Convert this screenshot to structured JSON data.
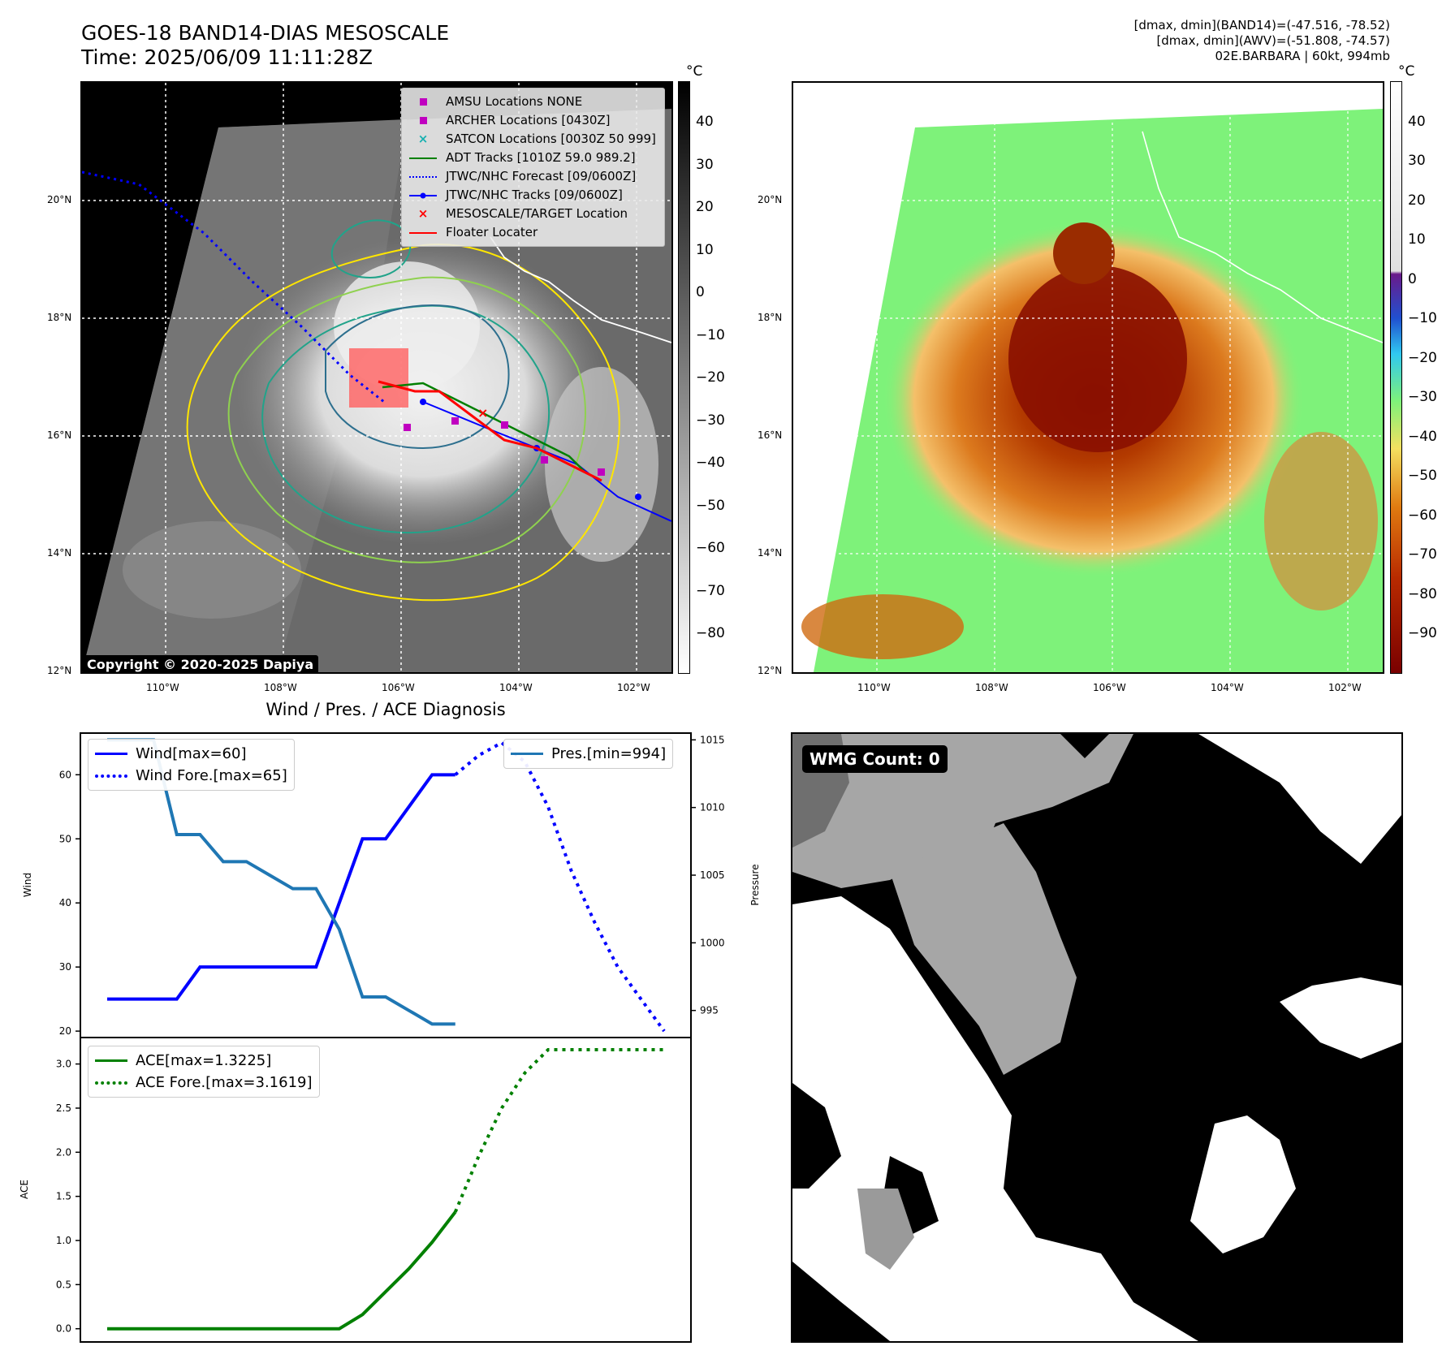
{
  "header": {
    "title_line1": "GOES-18 BAND14-DIAS MESOSCALE",
    "title_line2": "Time: 2025/06/09 11:11:28Z",
    "right_line1": "[dmax, dmin](BAND14)=(-47.516, -78.52)",
    "right_line2": "[dmax, dmin](AWV)=(-51.808, -74.57)",
    "right_line3": "02E.BARBARA | 60kt, 994mb"
  },
  "map_axes": {
    "lat_labels": [
      "20°N",
      "18°N",
      "16°N",
      "14°N",
      "12°N"
    ],
    "lon_labels": [
      "110°W",
      "108°W",
      "106°W",
      "104°W",
      "102°W"
    ]
  },
  "left_map": {
    "legend": [
      {
        "label": "AMSU Locations NONE",
        "symbol": "square",
        "color": "#c000c0"
      },
      {
        "label": "ARCHER Locations [0430Z]",
        "symbol": "square",
        "color": "#c000c0"
      },
      {
        "label": "SATCON Locations [0030Z 50 999]",
        "symbol": "x",
        "color": "#17b0b0"
      },
      {
        "label": "ADT Tracks [1010Z 59.0 989.2]",
        "symbol": "line",
        "color": "#008000"
      },
      {
        "label": "JTWC/NHC Forecast [09/0600Z]",
        "symbol": "dotted",
        "color": "#0000ff"
      },
      {
        "label": "JTWC/NHC Tracks [09/0600Z]",
        "symbol": "line-dot",
        "color": "#0000ff"
      },
      {
        "label": "MESOSCALE/TARGET Location",
        "symbol": "x",
        "color": "#ff0000"
      },
      {
        "label": "Floater Locater",
        "symbol": "line",
        "color": "#ff0000"
      }
    ],
    "colorbar": {
      "unit": "°C",
      "ticks": [
        "40",
        "30",
        "20",
        "10",
        "0",
        "−10",
        "−20",
        "−30",
        "−40",
        "−50",
        "−60",
        "−70",
        "−80"
      ]
    },
    "copyright": "Copyright © 2020-2025 Dapiya"
  },
  "right_map": {
    "colorbar": {
      "unit": "°C",
      "ticks": [
        "40",
        "30",
        "20",
        "10",
        "0",
        "−10",
        "−20",
        "−30",
        "−40",
        "−50",
        "−60",
        "−70",
        "−80",
        "−90"
      ]
    }
  },
  "diagnosis": {
    "title": "Wind / Pres. / ACE Diagnosis",
    "wind_ylabel": "Wind",
    "pres_ylabel": "Pressure",
    "ace_ylabel": "ACE",
    "legend_wind": "Wind[max=60]",
    "legend_wind_fore": "Wind Fore.[max=65]",
    "legend_pres": "Pres.[min=994]",
    "legend_ace": "ACE[max=1.3225]",
    "legend_ace_fore": "ACE Fore.[max=3.1619]"
  },
  "wmg": {
    "label": "WMG Count: 0"
  },
  "chart_data": [
    {
      "type": "line",
      "title": "Wind / Pres. / ACE Diagnosis",
      "x": [
        0,
        1,
        2,
        3,
        4,
        5,
        6,
        7,
        8,
        9,
        10,
        11,
        12,
        13,
        14,
        15,
        16,
        17,
        18,
        19,
        20,
        21,
        22,
        23,
        24
      ],
      "ylabel": "Wind",
      "ylim": [
        19,
        66.5
      ],
      "yticks": [
        20,
        30,
        40,
        50,
        60
      ],
      "y2label": "Pressure",
      "y2lim": [
        993,
        1015.5
      ],
      "y2ticks": [
        995,
        1000,
        1005,
        1010,
        1015
      ],
      "series": [
        {
          "name": "Wind[max=60]",
          "axis": "left",
          "color": "#0000ff",
          "style": "solid",
          "x": [
            0,
            3,
            4,
            5,
            6,
            7,
            8,
            9,
            10,
            11,
            12,
            13,
            14,
            15
          ],
          "values": [
            25,
            25,
            30,
            30,
            30,
            30,
            30,
            30,
            40,
            50,
            50,
            55,
            60,
            60
          ]
        },
        {
          "name": "Wind Fore.[max=65]",
          "axis": "left",
          "color": "#0000ff",
          "style": "dotted",
          "x": [
            15,
            16,
            17,
            18,
            19,
            20,
            21,
            22,
            23,
            24
          ],
          "values": [
            60,
            63,
            65,
            62,
            55,
            45,
            37,
            30,
            25,
            20
          ]
        },
        {
          "name": "Pres.[min=994]",
          "axis": "right",
          "color": "#1f77b4",
          "style": "solid",
          "x": [
            0,
            2,
            3,
            4,
            5,
            6,
            7,
            8,
            9,
            10,
            11,
            12,
            13,
            14,
            15
          ],
          "values": [
            1015,
            1015,
            1008,
            1008,
            1006,
            1006,
            1005,
            1004,
            1004,
            1001,
            996,
            996,
            995,
            994,
            994
          ]
        }
      ]
    },
    {
      "type": "line",
      "ylabel": "ACE",
      "ylim": [
        -0.15,
        3.3
      ],
      "yticks": [
        0.0,
        0.5,
        1.0,
        1.5,
        2.0,
        2.5,
        3.0
      ],
      "series": [
        {
          "name": "ACE[max=1.3225]",
          "color": "#008000",
          "style": "solid",
          "x": [
            0,
            3,
            6,
            7,
            8,
            9,
            10,
            11,
            12,
            13,
            14,
            15
          ],
          "values": [
            0,
            0,
            0,
            0,
            0,
            0,
            0,
            0.16,
            0.42,
            0.68,
            0.98,
            1.3225
          ]
        },
        {
          "name": "ACE Fore.[max=3.1619]",
          "color": "#008000",
          "style": "dotted",
          "x": [
            15,
            16,
            17,
            18,
            19,
            20,
            21,
            22,
            23,
            24
          ],
          "values": [
            1.3225,
            1.95,
            2.5,
            2.9,
            3.1619,
            3.1619,
            3.1619,
            3.1619,
            3.1619,
            3.1619
          ]
        }
      ]
    }
  ]
}
